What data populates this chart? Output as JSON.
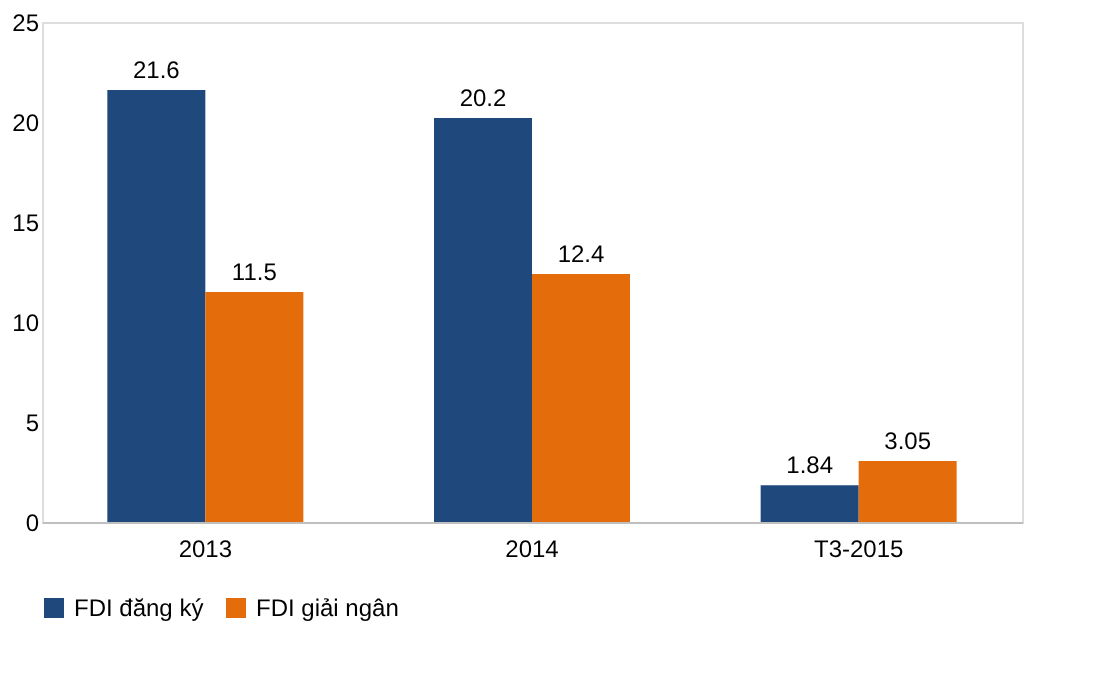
{
  "chart_data": {
    "type": "bar",
    "categories": [
      "2013",
      "2014",
      "T3-2015"
    ],
    "series": [
      {
        "name": "FDI đăng ký",
        "color": "#1f497d",
        "values": [
          21.6,
          20.2,
          1.84
        ]
      },
      {
        "name": "FDI giải ngân",
        "color": "#e46c0a",
        "values": [
          11.5,
          12.4,
          3.05
        ]
      }
    ],
    "ylim": [
      0,
      25
    ],
    "yticks": [
      0,
      5,
      10,
      15,
      20,
      25
    ],
    "grid": false,
    "legend": "bottom",
    "data_labels": true
  }
}
